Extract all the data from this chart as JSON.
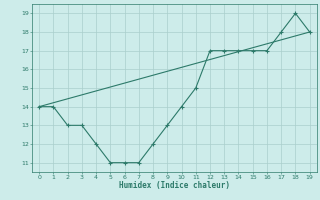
{
  "xlabel": "Humidex (Indice chaleur)",
  "x_data": [
    0,
    1,
    2,
    3,
    4,
    5,
    6,
    7,
    8,
    9,
    10,
    11,
    12,
    13,
    14,
    15,
    16,
    17,
    18,
    19
  ],
  "y_zigzag": [
    14,
    14,
    13,
    13,
    12,
    11,
    11,
    11,
    12,
    13,
    14,
    15,
    17,
    17,
    17,
    17,
    17,
    18,
    19,
    18
  ],
  "y_trend_x": [
    0,
    19
  ],
  "y_trend_y": [
    14,
    18
  ],
  "line_color": "#2d7a6a",
  "bg_color": "#cdecea",
  "grid_color": "#aacfcc",
  "text_color": "#2d7a6a",
  "xlim": [
    -0.5,
    19.5
  ],
  "ylim": [
    10.5,
    19.5
  ],
  "yticks": [
    11,
    12,
    13,
    14,
    15,
    16,
    17,
    18,
    19
  ],
  "xticks": [
    0,
    1,
    2,
    3,
    4,
    5,
    6,
    7,
    8,
    9,
    10,
    11,
    12,
    13,
    14,
    15,
    16,
    17,
    18,
    19
  ]
}
